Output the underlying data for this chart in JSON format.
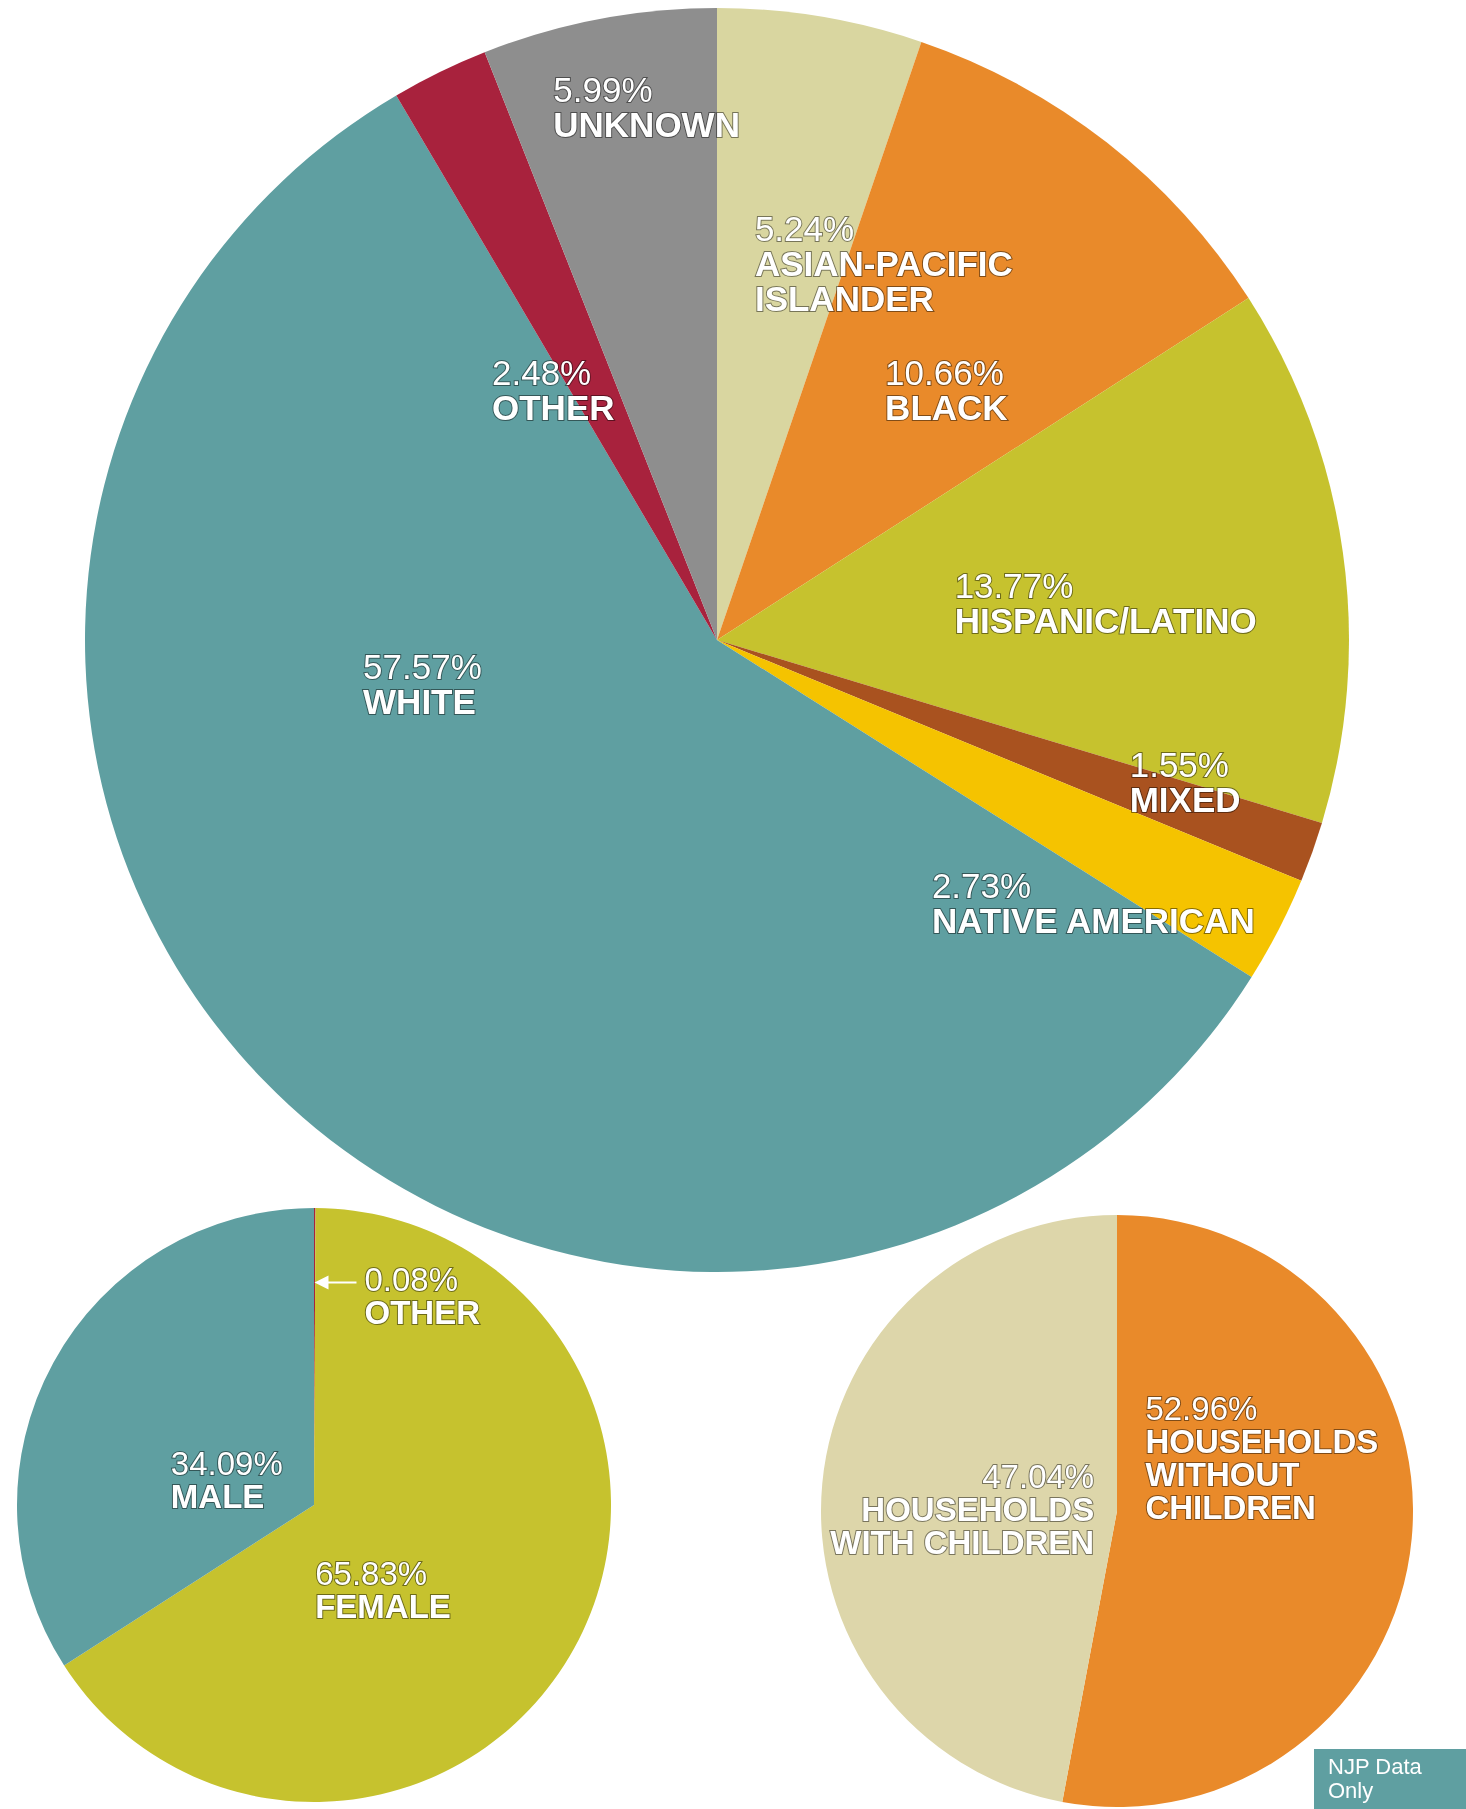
{
  "chart_data": [
    {
      "type": "pie",
      "categories": [
        "ASIAN-PACIFIC ISLANDER",
        "BLACK",
        "HISPANIC/LATINO",
        "MIXED",
        "NATIVE AMERICAN",
        "WHITE",
        "OTHER",
        "UNKNOWN"
      ],
      "values": [
        5.24,
        10.66,
        13.77,
        1.55,
        2.73,
        57.57,
        2.48,
        5.99
      ],
      "value_labels": [
        "5.24%",
        "10.66%",
        "13.77%",
        "1.55%",
        "2.73%",
        "57.57%",
        "2.48%",
        "5.99%"
      ],
      "colors": [
        "#d9d6a0",
        "#e98a2a",
        "#c6c22e",
        "#a9521f",
        "#f5c300",
        "#5f9fa1",
        "#a8223d",
        "#8e8e8e"
      ]
    },
    {
      "type": "pie",
      "categories": [
        "OTHER",
        "FEMALE",
        "MALE"
      ],
      "values": [
        0.08,
        65.83,
        34.09
      ],
      "value_labels": [
        "0.08%",
        "65.83%",
        "34.09%"
      ],
      "colors": [
        "#a8223d",
        "#c6c22e",
        "#5f9fa1"
      ]
    },
    {
      "type": "pie",
      "categories": [
        "HOUSEHOLDS WITHOUT CHILDREN",
        "HOUSEHOLDS WITH CHILDREN"
      ],
      "values": [
        52.96,
        47.04
      ],
      "value_labels": [
        "52.96%",
        "47.04%"
      ],
      "colors": [
        "#e98a2a",
        "#ddd6aa"
      ],
      "annotations": [
        "NJP Data Only"
      ]
    }
  ]
}
